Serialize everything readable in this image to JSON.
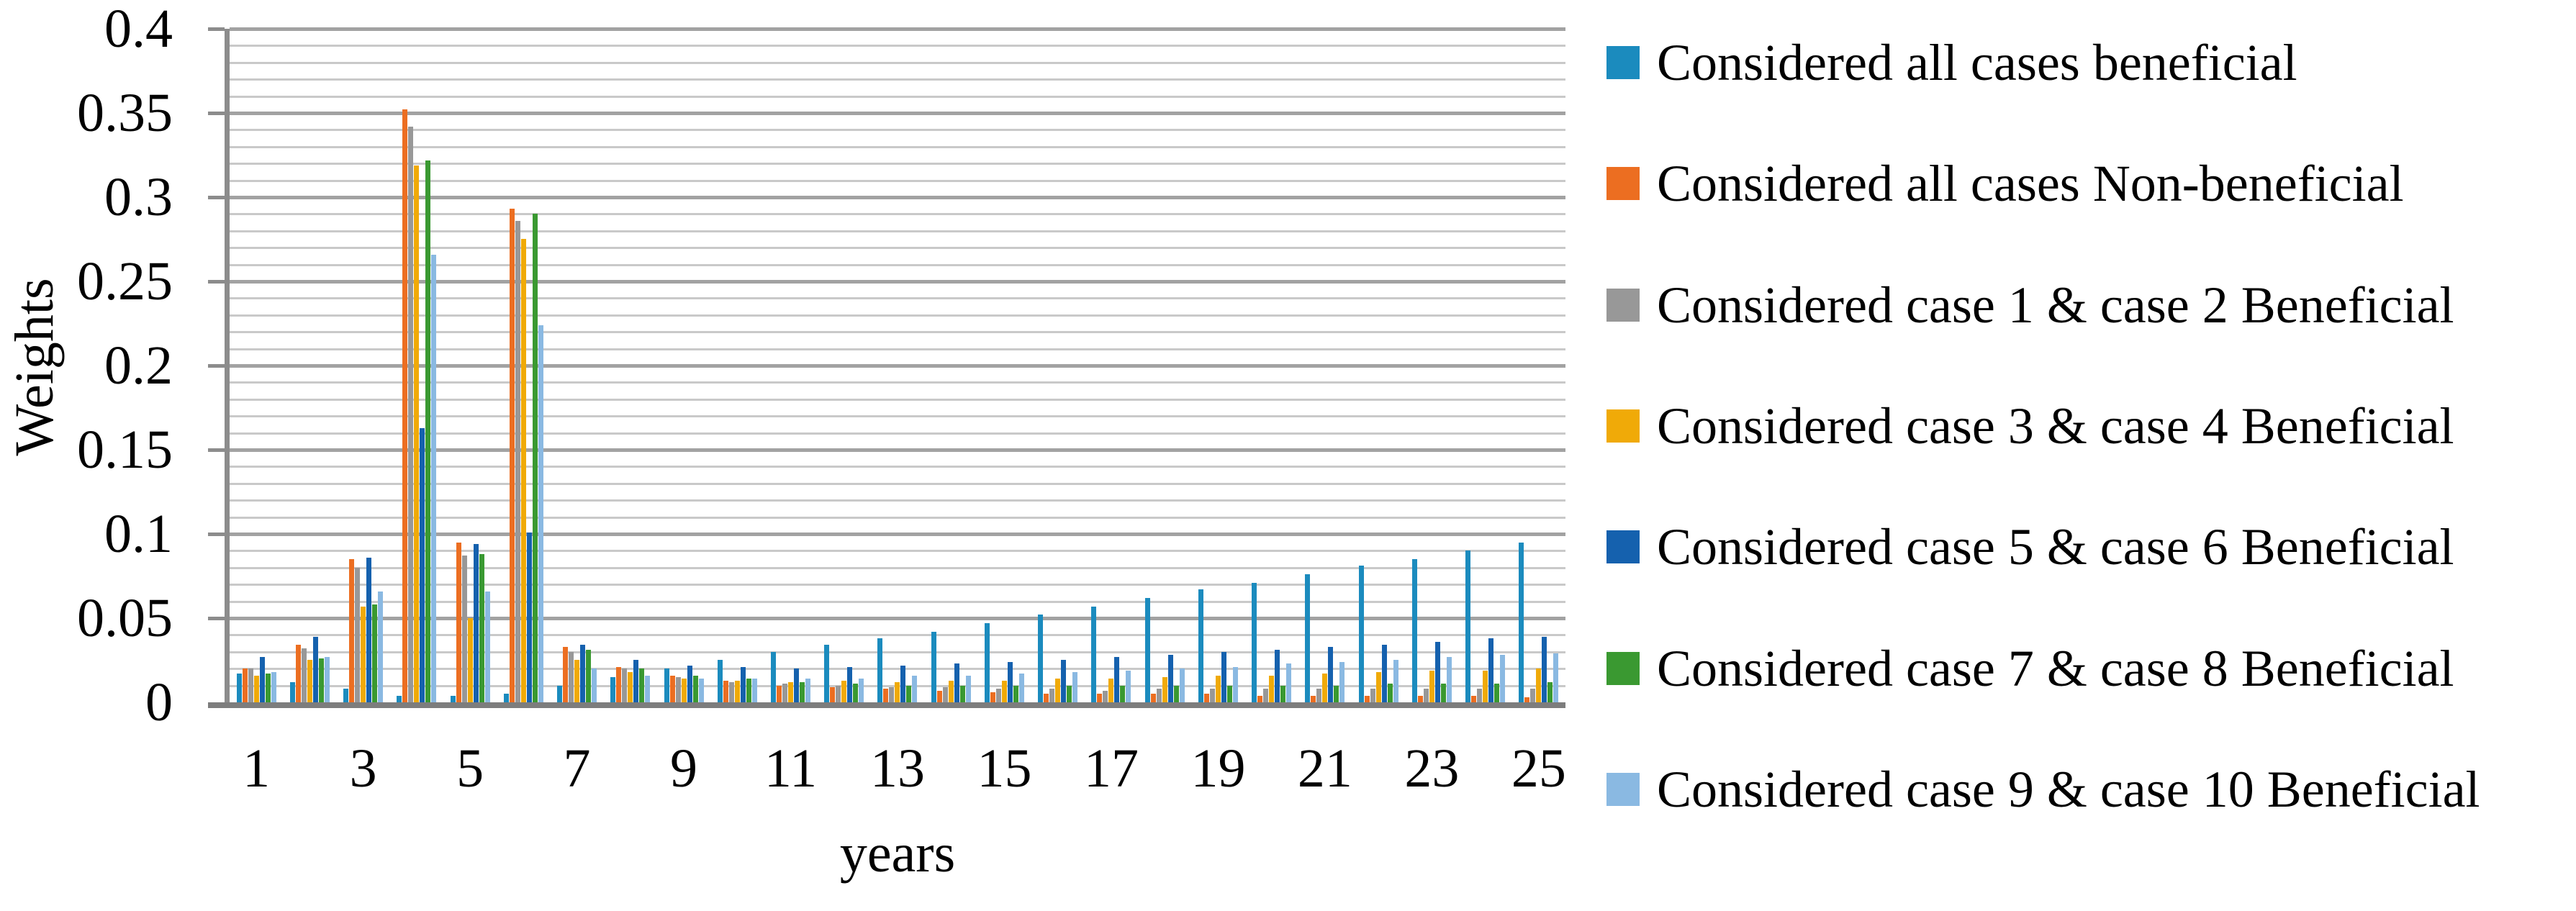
{
  "chart_data": {
    "type": "bar",
    "title": "",
    "xlabel": "years",
    "ylabel": "Weights",
    "ylim": [
      0,
      0.4
    ],
    "ymajor_step": 0.05,
    "yminor_step": 0.01,
    "grid": "horizontal, minor every 0.01 light gray, major every 0.05 darker gray",
    "legend_position": "right",
    "ytick_labels": [
      "0",
      "0.05",
      "0.1",
      "0.15",
      "0.2",
      "0.25",
      "0.3",
      "0.35",
      "0.4"
    ],
    "xtick_labels": [
      "1",
      "3",
      "5",
      "7",
      "9",
      "11",
      "13",
      "15",
      "17",
      "19",
      "21",
      "23",
      "25"
    ],
    "categories": [
      1,
      2,
      3,
      4,
      5,
      6,
      7,
      8,
      9,
      10,
      11,
      12,
      13,
      14,
      15,
      16,
      17,
      18,
      19,
      20,
      21,
      22,
      23,
      24,
      25
    ],
    "series": [
      {
        "name": "Considered all cases beneficial",
        "color": "#1B8BBE",
        "values": [
          0.017,
          0.012,
          0.008,
          0.004,
          0.004,
          0.005,
          0.01,
          0.015,
          0.02,
          0.025,
          0.03,
          0.034,
          0.038,
          0.042,
          0.047,
          0.052,
          0.057,
          0.062,
          0.067,
          0.071,
          0.076,
          0.081,
          0.085,
          0.09,
          0.095
        ]
      },
      {
        "name": "Considered all cases Non-beneficial",
        "color": "#EC6E21",
        "values": [
          0.02,
          0.034,
          0.085,
          0.352,
          0.095,
          0.293,
          0.033,
          0.021,
          0.016,
          0.013,
          0.01,
          0.009,
          0.008,
          0.007,
          0.006,
          0.005,
          0.005,
          0.005,
          0.005,
          0.004,
          0.004,
          0.004,
          0.004,
          0.004,
          0.003
        ]
      },
      {
        "name": "Considered case 1 & case 2 Beneficial",
        "color": "#989898",
        "values": [
          0.02,
          0.032,
          0.08,
          0.342,
          0.087,
          0.286,
          0.03,
          0.02,
          0.015,
          0.012,
          0.011,
          0.01,
          0.009,
          0.009,
          0.008,
          0.008,
          0.007,
          0.008,
          0.008,
          0.008,
          0.008,
          0.008,
          0.008,
          0.008,
          0.008
        ]
      },
      {
        "name": "Considered case 3 & case 4 Beneficial",
        "color": "#F0AA08",
        "values": [
          0.016,
          0.025,
          0.057,
          0.319,
          0.05,
          0.275,
          0.025,
          0.018,
          0.014,
          0.013,
          0.012,
          0.013,
          0.012,
          0.013,
          0.013,
          0.014,
          0.014,
          0.015,
          0.016,
          0.016,
          0.017,
          0.018,
          0.019,
          0.019,
          0.02
        ]
      },
      {
        "name": "Considered case 5 & case 6 Beneficial",
        "color": "#1561AE",
        "values": [
          0.027,
          0.039,
          0.086,
          0.163,
          0.094,
          0.101,
          0.034,
          0.025,
          0.022,
          0.021,
          0.02,
          0.021,
          0.022,
          0.023,
          0.024,
          0.025,
          0.027,
          0.028,
          0.03,
          0.031,
          0.033,
          0.034,
          0.036,
          0.038,
          0.039
        ]
      },
      {
        "name": "Considered case 7 & case 8 Beneficial",
        "color": "#3A9931",
        "values": [
          0.017,
          0.026,
          0.058,
          0.322,
          0.088,
          0.29,
          0.031,
          0.02,
          0.016,
          0.014,
          0.012,
          0.011,
          0.01,
          0.01,
          0.01,
          0.01,
          0.01,
          0.01,
          0.01,
          0.01,
          0.01,
          0.011,
          0.011,
          0.011,
          0.012
        ]
      },
      {
        "name": "Considered case 9 & case 10 Beneficial",
        "color": "#8AB9E2",
        "values": [
          0.018,
          0.027,
          0.066,
          0.266,
          0.066,
          0.224,
          0.02,
          0.016,
          0.014,
          0.014,
          0.014,
          0.014,
          0.016,
          0.016,
          0.017,
          0.018,
          0.019,
          0.02,
          0.021,
          0.023,
          0.024,
          0.025,
          0.027,
          0.028,
          0.029
        ]
      }
    ]
  }
}
